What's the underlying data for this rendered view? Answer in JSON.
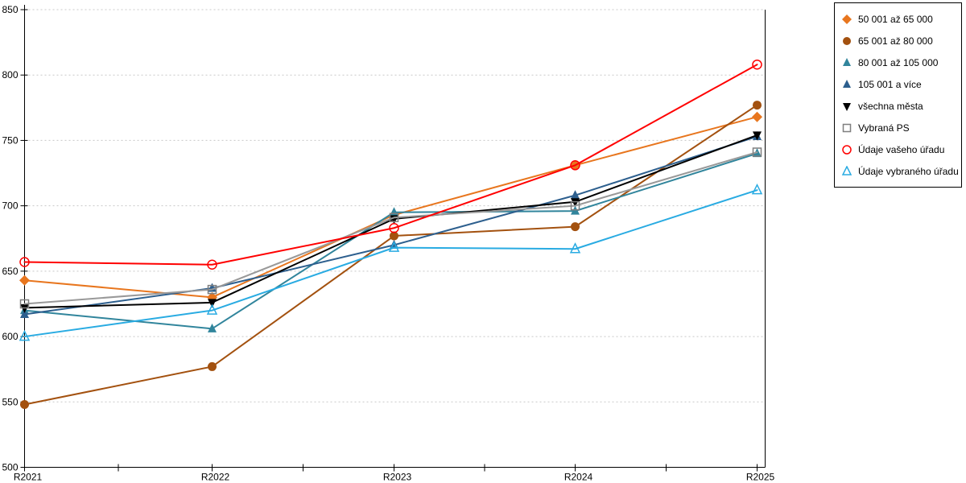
{
  "chart_data": {
    "type": "line",
    "title": "",
    "xlabel": "",
    "ylabel": "",
    "categories": [
      "R2021",
      "R2022",
      "R2023",
      "R2024",
      "R2025"
    ],
    "ylim": [
      500,
      850
    ],
    "ytick_step": 50,
    "ytick_labels": [
      "500",
      "550",
      "600",
      "650",
      "700",
      "750",
      "800",
      "850"
    ],
    "grid": "horizontal dashed gridlines at each 50",
    "legend_position": "outside top-right, boxed",
    "axis_color": "#000000",
    "grid_color": "#c8c8c8",
    "background_color": "#ffffff",
    "series": [
      {
        "name": "50 001 až 65 000",
        "color": "#e8761e",
        "marker": "diamond",
        "marker_style": "filled",
        "values": [
          643,
          630,
          693,
          731,
          768
        ]
      },
      {
        "name": "65 001 až 80 000",
        "color": "#a3510f",
        "marker": "circle",
        "marker_style": "filled",
        "values": [
          548,
          577,
          677,
          684,
          777
        ]
      },
      {
        "name": "80 001 až 105 000",
        "color": "#31859c",
        "marker": "triangle-up",
        "marker_style": "filled",
        "values": [
          620,
          606,
          695,
          696,
          740
        ]
      },
      {
        "name": "105 001 a více",
        "color": "#2d5f8e",
        "marker": "triangle-up",
        "marker_style": "filled",
        "values": [
          617,
          637,
          670,
          708,
          753
        ]
      },
      {
        "name": "všechna města",
        "color": "#000000",
        "marker": "triangle-down",
        "marker_style": "filled",
        "values": [
          622,
          626,
          690,
          703,
          754
        ]
      },
      {
        "name": "Vybraná PS",
        "color": "#999999",
        "marker": "square",
        "marker_style": "open",
        "marker_stroke": "#7f7f7f",
        "values": [
          625,
          636,
          691,
          700,
          741
        ]
      },
      {
        "name": "Údaje vašeho úřadu",
        "color": "#ff0000",
        "marker": "circle",
        "marker_style": "open",
        "marker_stroke": "#ff0000",
        "values": [
          657,
          655,
          683,
          731,
          808
        ]
      },
      {
        "name": "Údaje vybraného úřadu",
        "color": "#29abe2",
        "marker": "triangle-up",
        "marker_style": "open",
        "marker_stroke": "#29abe2",
        "values": [
          600,
          620,
          668,
          667,
          712
        ]
      }
    ]
  }
}
